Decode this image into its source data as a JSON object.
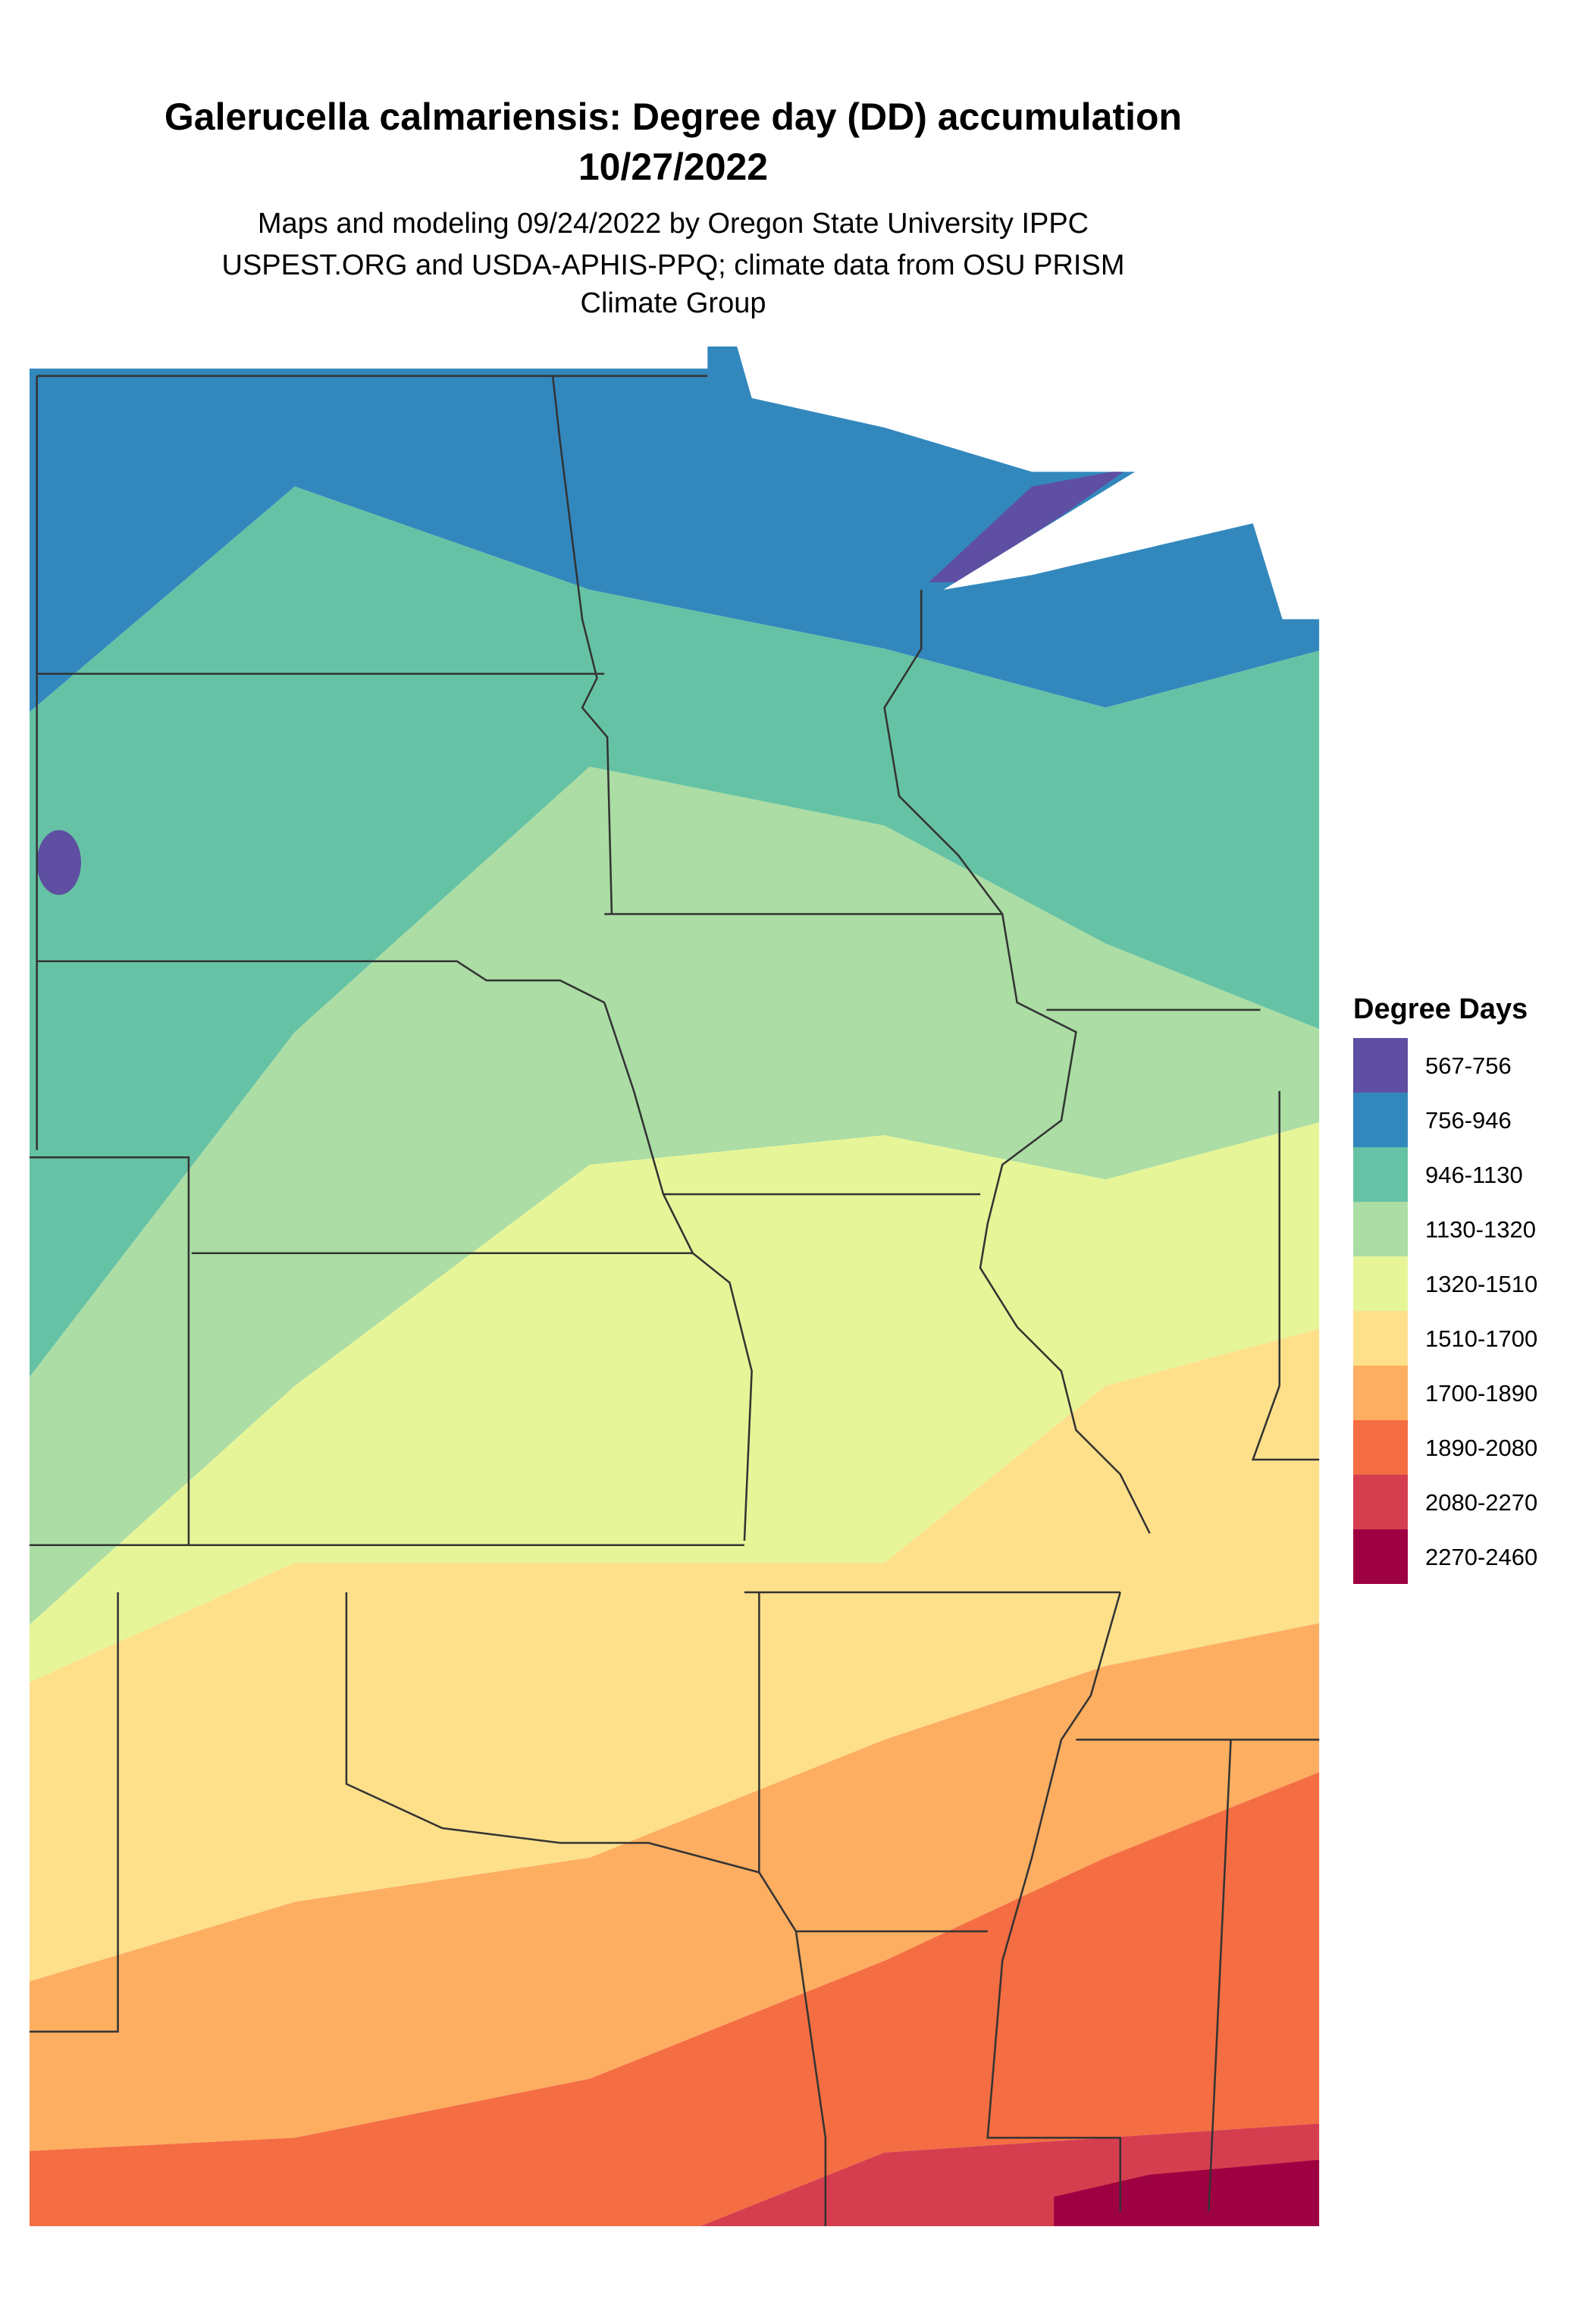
{
  "header": {
    "title": "Galerucella calmariensis: Degree day (DD) accumulation",
    "date": "10/27/2022",
    "subtitle": [
      "Maps and modeling 09/24/2022 by Oregon State University IPPC",
      "USPEST.ORG and USDA-APHIS-PPQ; climate data from OSU PRISM",
      "Climate Group"
    ]
  },
  "legend": {
    "title": "Degree Days",
    "items": [
      {
        "label": "567-756",
        "color": "#5e4fa2"
      },
      {
        "label": "756-946",
        "color": "#3288bd"
      },
      {
        "label": "946-1130",
        "color": "#66c2a5"
      },
      {
        "label": "1130-1320",
        "color": "#abdda4"
      },
      {
        "label": "1320-1510",
        "color": "#e6f598"
      },
      {
        "label": "1510-1700",
        "color": "#fee08b"
      },
      {
        "label": "1700-1890",
        "color": "#fdae61"
      },
      {
        "label": "1890-2080",
        "color": "#f46d43"
      },
      {
        "label": "2080-2270",
        "color": "#d53e4f"
      },
      {
        "label": "2270-2460",
        "color": "#9e0142"
      }
    ]
  }
}
